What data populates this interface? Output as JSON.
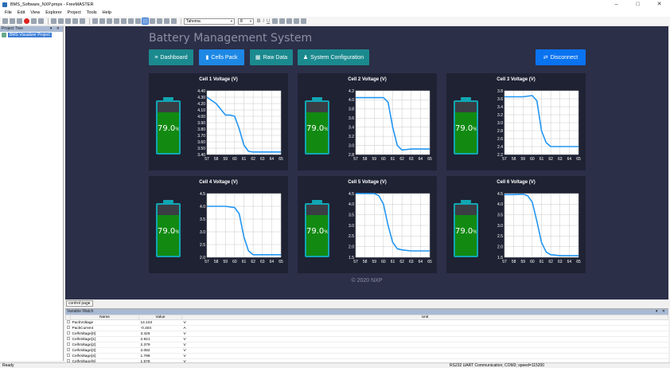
{
  "window": {
    "title": "BMS_Software_NXP.pmpx - FreeMASTER",
    "minimize": "–",
    "maximize": "□",
    "close": "✕"
  },
  "menu": [
    "File",
    "Edit",
    "View",
    "Explorer",
    "Project",
    "Tools",
    "Help"
  ],
  "toolbar": {
    "font_value": "Tahoma",
    "size_value": "8",
    "bold": "B",
    "italic": "I",
    "underline": "U"
  },
  "project_tree": {
    "header": "Project Tree",
    "pin": "▾ ✕",
    "item": "BMS Visualizer Project"
  },
  "dashboard": {
    "title": "Battery Management System",
    "nav": [
      {
        "label": "Dashboard",
        "icon": "≡"
      },
      {
        "label": "Cells Pack",
        "icon": "▮"
      },
      {
        "label": "Raw Data",
        "icon": "▦"
      },
      {
        "label": "System Configuration",
        "icon": "♟"
      }
    ],
    "disconnect": {
      "label": "Disconnect",
      "icon": "⇄"
    },
    "footer": "© 2020 NXP",
    "colors": {
      "background": "#2b2f48",
      "card": "#1f2233",
      "accent": "#1b8a8f",
      "line": "#2196f3",
      "battery_fill": "#128a12"
    }
  },
  "cells": [
    {
      "title": "Cell 1 Voltage (V)",
      "level": "79.0",
      "unit": "%",
      "fill": 0.79,
      "yticks": [
        "4.40",
        "4.30",
        "4.20",
        "4.10",
        "4.00",
        "3.90",
        "3.80",
        "3.70",
        "3.60",
        "3.50",
        "3.40"
      ],
      "ymin": 3.4,
      "ymax": 4.4
    },
    {
      "title": "Cell 2 Voltage (V)",
      "level": "79.0",
      "unit": "%",
      "fill": 0.79,
      "yticks": [
        "4.2",
        "4.0",
        "3.8",
        "3.6",
        "3.4",
        "3.2",
        "3.0",
        "2.8"
      ],
      "ymin": 2.8,
      "ymax": 4.2
    },
    {
      "title": "Cell 3 Voltage (V)",
      "level": "79.0",
      "unit": "%",
      "fill": 0.79,
      "yticks": [
        "3.8",
        "3.6",
        "3.4",
        "3.2",
        "3.0",
        "2.8",
        "2.6",
        "2.4",
        "2.2"
      ],
      "ymin": 2.2,
      "ymax": 3.8
    },
    {
      "title": "Cell 4 Voltage (V)",
      "level": "79.0",
      "unit": "%",
      "fill": 0.79,
      "yticks": [
        "4.5",
        "4.0",
        "3.5",
        "3.0",
        "2.5",
        "2.0"
      ],
      "ymin": 2.0,
      "ymax": 4.5
    },
    {
      "title": "Cell 5 Voltage (V)",
      "level": "79.0",
      "unit": "%",
      "fill": 0.79,
      "yticks": [
        "4.5",
        "4.0",
        "3.5",
        "3.0",
        "2.5",
        "2.0",
        "1.5"
      ],
      "ymin": 1.5,
      "ymax": 4.5
    },
    {
      "title": "Cell 6 Voltage (V)",
      "level": "79.0",
      "unit": "%",
      "fill": 0.79,
      "yticks": [
        "4.5",
        "4.0",
        "3.5",
        "3.0",
        "2.5",
        "2.0",
        "1.5"
      ],
      "ymin": 1.5,
      "ymax": 4.5
    }
  ],
  "chart_data": [
    {
      "type": "line",
      "title": "Cell 1 Voltage (V)",
      "x": [
        57,
        58,
        59,
        59.5,
        60,
        60.5,
        61,
        61.5,
        62,
        63,
        64,
        65
      ],
      "series": [
        {
          "values": [
            4.3,
            4.2,
            4.02,
            4.02,
            4.0,
            3.8,
            3.55,
            3.45,
            3.44,
            3.44,
            3.44,
            3.44
          ]
        }
      ],
      "ylim": [
        3.4,
        4.4
      ],
      "xlim": [
        57,
        65
      ],
      "grid": true
    },
    {
      "type": "line",
      "title": "Cell 2 Voltage (V)",
      "x": [
        57,
        58,
        59,
        60,
        60.5,
        61,
        61.5,
        62,
        63,
        64,
        65
      ],
      "series": [
        {
          "values": [
            4.05,
            4.05,
            4.05,
            4.05,
            3.95,
            3.4,
            3.0,
            2.9,
            2.92,
            2.92,
            2.92
          ]
        }
      ],
      "ylim": [
        2.8,
        4.2
      ],
      "xlim": [
        57,
        65
      ],
      "grid": true
    },
    {
      "type": "line",
      "title": "Cell 3 Voltage (V)",
      "x": [
        57,
        58,
        59,
        60,
        60.5,
        61,
        61.5,
        62,
        63,
        64,
        65
      ],
      "series": [
        {
          "values": [
            3.65,
            3.65,
            3.65,
            3.68,
            3.55,
            2.8,
            2.5,
            2.4,
            2.4,
            2.4,
            2.4
          ]
        }
      ],
      "ylim": [
        2.2,
        3.8
      ],
      "xlim": [
        57,
        65
      ],
      "grid": true
    },
    {
      "type": "line",
      "title": "Cell 4 Voltage (V)",
      "x": [
        57,
        58,
        59,
        60,
        60.5,
        61,
        61.5,
        62,
        63,
        64,
        65
      ],
      "series": [
        {
          "values": [
            4.0,
            4.0,
            4.0,
            3.95,
            3.7,
            2.8,
            2.25,
            2.1,
            2.1,
            2.1,
            2.1
          ]
        }
      ],
      "ylim": [
        2.0,
        4.5
      ],
      "xlim": [
        57,
        65
      ],
      "grid": true
    },
    {
      "type": "line",
      "title": "Cell 5 Voltage (V)",
      "x": [
        57,
        58,
        59,
        59.5,
        60,
        60.5,
        61,
        61.5,
        62,
        63,
        64,
        65
      ],
      "series": [
        {
          "values": [
            4.5,
            4.5,
            4.5,
            4.4,
            4.0,
            3.0,
            2.2,
            1.9,
            1.85,
            1.8,
            1.8,
            1.8
          ]
        }
      ],
      "ylim": [
        1.5,
        4.5
      ],
      "xlim": [
        57,
        65
      ],
      "grid": true
    },
    {
      "type": "line",
      "title": "Cell 6 Voltage (V)",
      "x": [
        57,
        58,
        59,
        59.5,
        60,
        60.5,
        61,
        61.5,
        62,
        63,
        64,
        65
      ],
      "series": [
        {
          "values": [
            4.45,
            4.45,
            4.47,
            4.4,
            4.1,
            3.2,
            2.2,
            1.75,
            1.62,
            1.58,
            1.58,
            1.58
          ]
        }
      ],
      "ylim": [
        1.5,
        4.5
      ],
      "xlim": [
        57,
        65
      ],
      "grid": true
    }
  ],
  "tab": "control page",
  "watch": {
    "header": "Variable Watch",
    "pin": "▾ ✕",
    "columns": [
      "Name",
      "Value",
      "Unit"
    ],
    "rows": [
      [
        "PackVoltage",
        "14.104",
        "V"
      ],
      [
        "PackCurrent",
        "-0.404",
        "A"
      ],
      [
        "CellVoltage[0]",
        "3.426",
        "V"
      ],
      [
        "CellVoltage[1]",
        "2.921",
        "V"
      ],
      [
        "CellVoltage[2]",
        "2.379",
        "V"
      ],
      [
        "CellVoltage[3]",
        "2.082",
        "V"
      ],
      [
        "CellVoltage[4]",
        "1.798",
        "V"
      ],
      [
        "CellVoltage[5]",
        "1.578",
        "V"
      ]
    ]
  },
  "status": {
    "left": "Ready",
    "right": "RS232 UART Communication; COM3; speed=115200"
  }
}
